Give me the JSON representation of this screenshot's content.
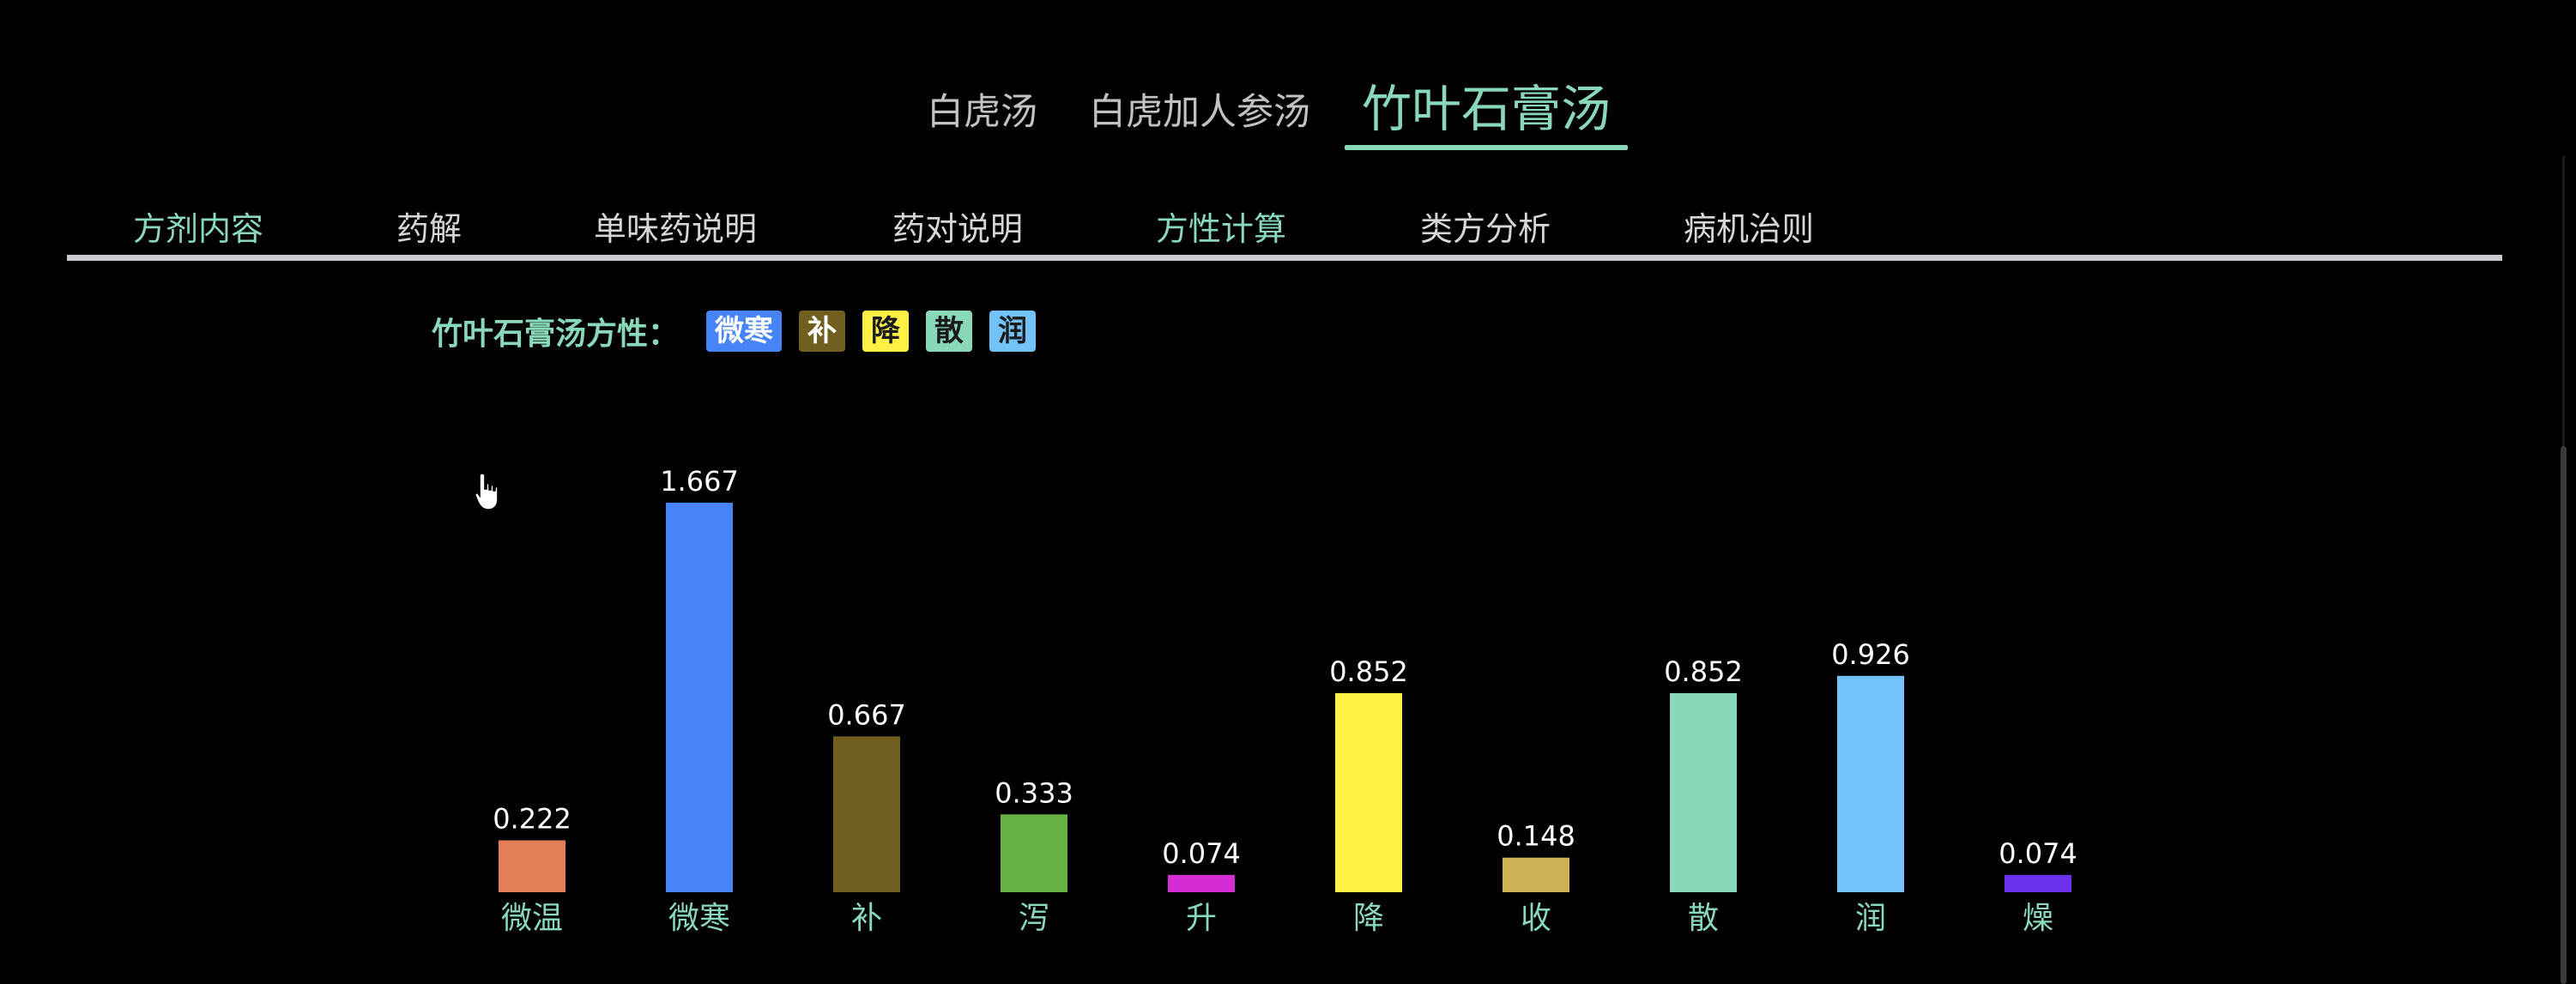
{
  "formula_tabs": [
    {
      "label": "白虎汤",
      "active": false
    },
    {
      "label": "白虎加人参汤",
      "active": false
    },
    {
      "label": "竹叶石膏汤",
      "active": true
    }
  ],
  "section_tabs": [
    {
      "label": "方剂内容",
      "state": "current"
    },
    {
      "label": "药解",
      "state": ""
    },
    {
      "label": "单味药说明",
      "state": ""
    },
    {
      "label": "药对说明",
      "state": ""
    },
    {
      "label": "方性计算",
      "state": "selected"
    },
    {
      "label": "类方分析",
      "state": ""
    },
    {
      "label": "病机治则",
      "state": ""
    }
  ],
  "properties": {
    "label": "竹叶石膏汤方性：",
    "badges": [
      {
        "label": "微寒",
        "color": "#4684f8"
      },
      {
        "label": "补",
        "color": "#715f1f"
      },
      {
        "label": "降",
        "color": "#fef045"
      },
      {
        "label": "散",
        "color": "#89d8b9"
      },
      {
        "label": "润",
        "color": "#73c3fa"
      }
    ]
  },
  "chart_data": {
    "type": "bar",
    "title": "",
    "xlabel": "",
    "ylabel": "",
    "ylim": [
      0,
      1.667
    ],
    "categories": [
      "微温",
      "微寒",
      "补",
      "泻",
      "升",
      "降",
      "收",
      "散",
      "润",
      "燥"
    ],
    "values": [
      0.222,
      1.667,
      0.667,
      0.333,
      0.074,
      0.852,
      0.148,
      0.852,
      0.926,
      0.074
    ],
    "value_labels": [
      "0.222",
      "1.667",
      "0.667",
      "0.333",
      "0.074",
      "0.852",
      "0.148",
      "0.852",
      "0.926",
      "0.074"
    ],
    "colors": [
      "#e27f59",
      "#4684f8",
      "#715f1f",
      "#68b145",
      "#d62cd4",
      "#fef045",
      "#cdb154",
      "#89d8b9",
      "#73c3fa",
      "#6c31ef"
    ],
    "category_label_color": "#89d8b9",
    "value_label_color": "#ffffff",
    "grid": false,
    "legend": "none"
  }
}
